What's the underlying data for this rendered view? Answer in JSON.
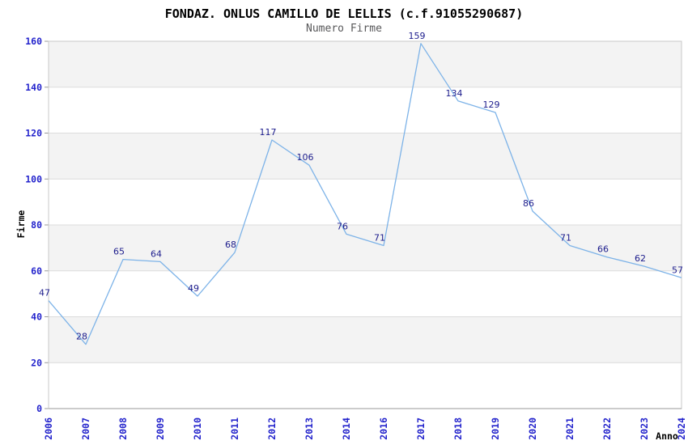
{
  "chart_data": {
    "type": "line",
    "title": "FONDAZ. ONLUS CAMILLO DE LELLIS (c.f.91055290687)",
    "subtitle": "Numero Firme",
    "xlabel": "Anno",
    "ylabel": "Firme",
    "categories": [
      "2006",
      "2007",
      "2008",
      "2009",
      "2010",
      "2011",
      "2012",
      "2013",
      "2014",
      "2016",
      "2017",
      "2018",
      "2019",
      "2020",
      "2021",
      "2022",
      "2023",
      "2024"
    ],
    "values": [
      47,
      28,
      65,
      64,
      49,
      68,
      117,
      106,
      76,
      71,
      159,
      134,
      129,
      86,
      71,
      66,
      62,
      57
    ],
    "ylim": [
      0,
      160
    ],
    "ytick_step": 20,
    "legend": "none",
    "grid": "horizontal gridlines with alternating gray/white bands",
    "data_labels": true,
    "x_tick_rotation": -90,
    "colors": {
      "line": "#7db3e8",
      "data_label": "#1c1c8c",
      "tick_label": "#2424cc",
      "band_alt": "#f3f3f3",
      "band_main": "#ffffff",
      "grid_line": "#dcdcdc",
      "plot_border": "#c9c9c9",
      "axis_line": "#999999",
      "title_color": "#000000",
      "subtitle_color": "#58585a",
      "background": "#ffffff"
    }
  }
}
